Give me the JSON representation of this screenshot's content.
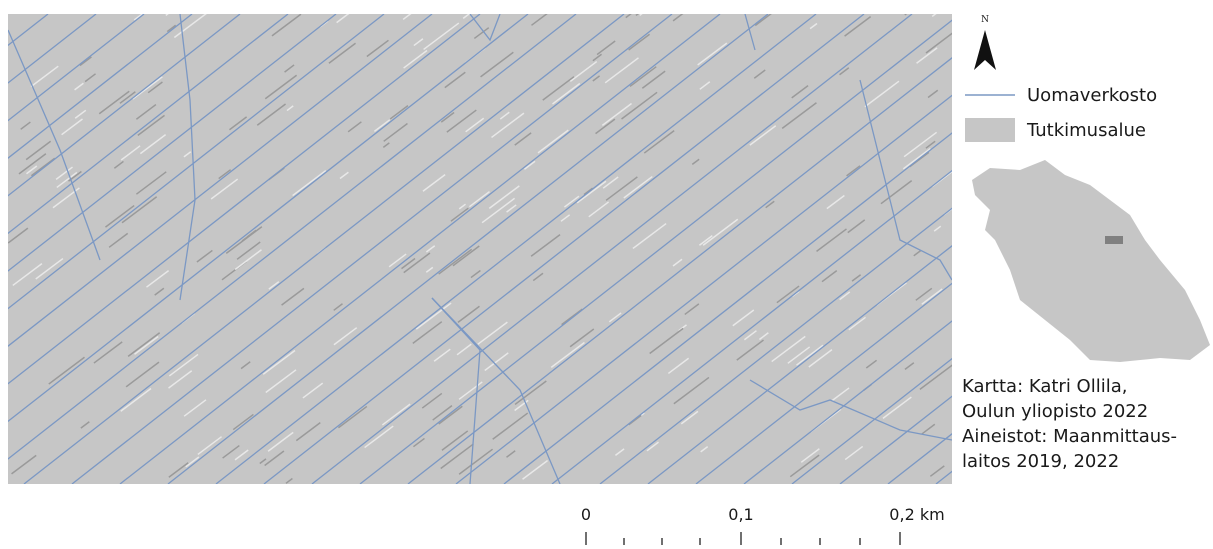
{
  "north_label": "N",
  "legend": {
    "items": [
      "Uomaverkosto",
      "Tutkimusalue"
    ]
  },
  "credits": [
    "Kartta: Katri Ollila,",
    "Oulun yliopisto 2022",
    "Aineistot: Maanmittaus-",
    "laitos 2019, 2022"
  ],
  "scale_bar": {
    "labels": [
      "0",
      "0,1",
      "0,2 km"
    ]
  }
}
